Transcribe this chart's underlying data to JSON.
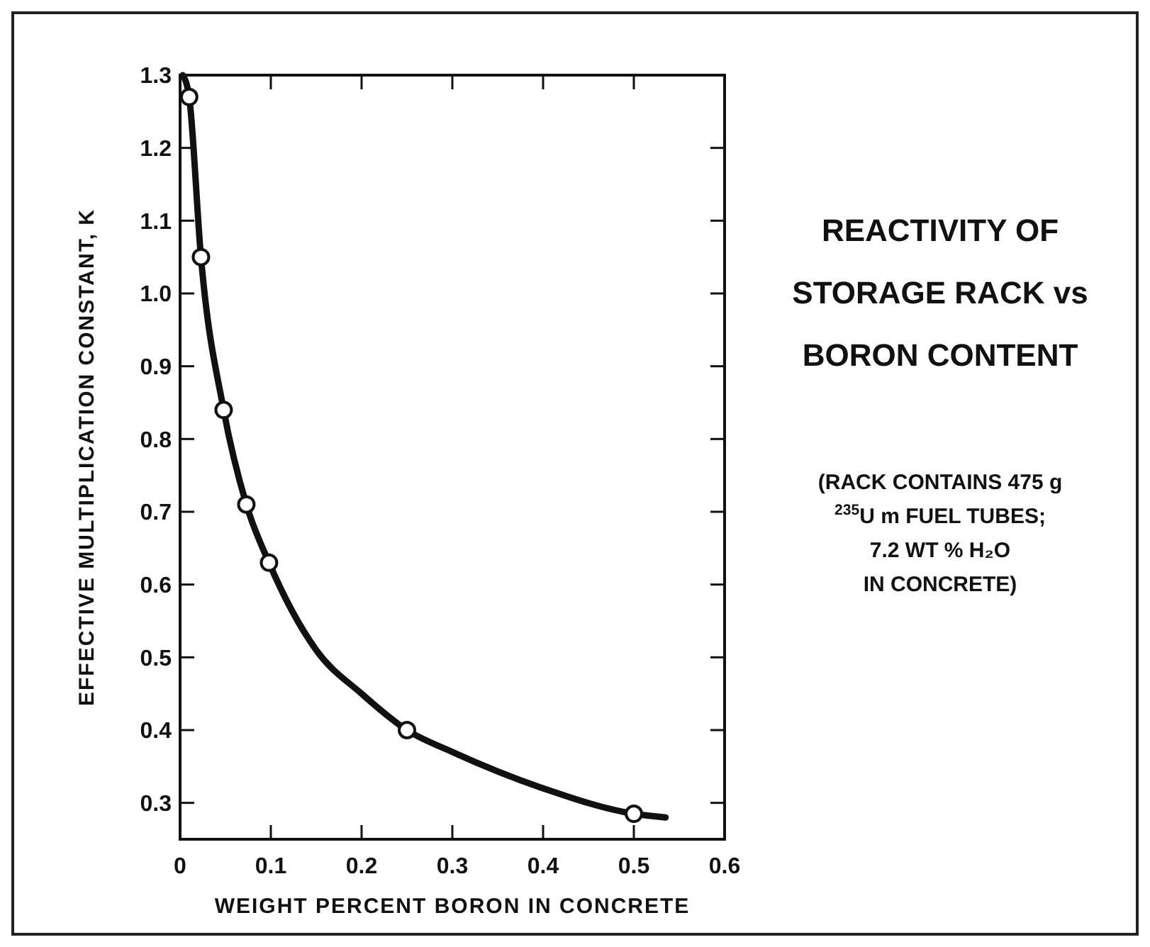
{
  "chart_data": {
    "type": "line",
    "title": "REACTIVITY OF\nSTORAGE RACK vs\nBORON CONTENT",
    "xlabel": "WEIGHT PERCENT BORON IN CONCRETE",
    "ylabel": "EFFECTIVE MULTIPLICATION CONSTANT, K",
    "annotations": [
      "(RACK CONTAINS 475 g\n$^{235}$U m FUEL TUBES;\n7.2 WT % H₂O\nIN CONCRETE)"
    ],
    "series": [
      {
        "color": "#111111",
        "marker": "none",
        "x": [
          0.003,
          0.01,
          0.023,
          0.048,
          0.073,
          0.098,
          0.15,
          0.2,
          0.25,
          0.3,
          0.4,
          0.5,
          0.535
        ],
        "values": [
          1.3,
          1.27,
          1.05,
          0.84,
          0.71,
          0.63,
          0.51,
          0.45,
          0.4,
          0.37,
          0.32,
          0.285,
          0.28
        ]
      },
      {
        "type": "scatter",
        "color": "#111111",
        "marker": "circle",
        "x": [
          0.01,
          0.023,
          0.048,
          0.073,
          0.098,
          0.25,
          0.5
        ],
        "values": [
          1.27,
          1.05,
          0.84,
          0.71,
          0.63,
          0.4,
          0.285
        ]
      }
    ],
    "xlim": [
      0,
      0.6
    ],
    "ylim": [
      0.25,
      1.3
    ],
    "xticks": [
      0,
      0.1,
      0.2,
      0.3,
      0.4,
      0.5,
      0.6
    ],
    "yticks": [
      0.3,
      0.4,
      0.5,
      0.6,
      0.7,
      0.8,
      0.9,
      {
        "value": 1.0,
        "label": "1.0"
      },
      1.1,
      1.2,
      1.3
    ],
    "grid": false
  }
}
